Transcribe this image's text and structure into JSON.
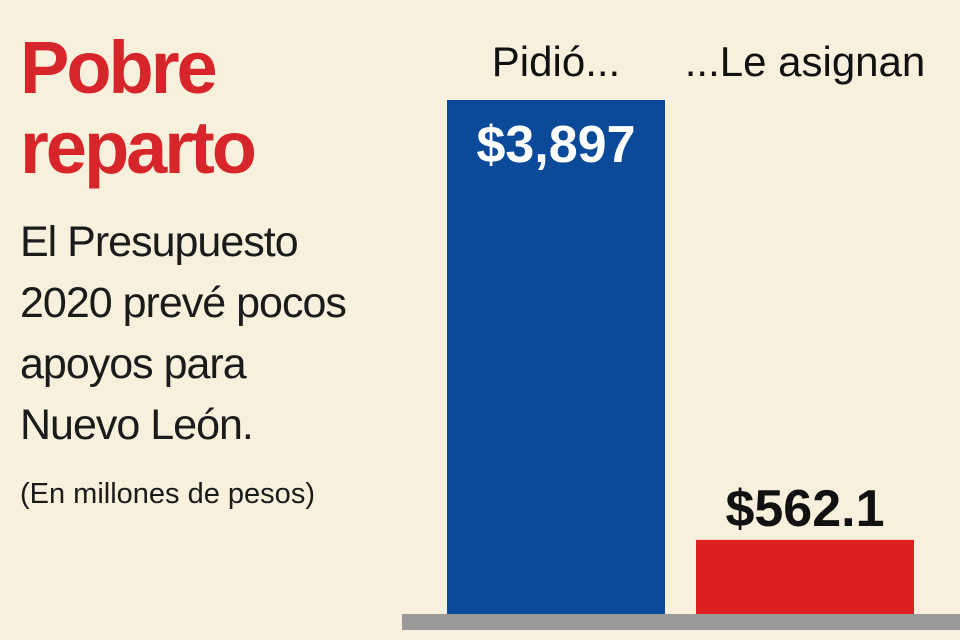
{
  "title_lines": [
    "Pobre",
    "reparto"
  ],
  "subtitle_lines": [
    "El Presupuesto",
    "2020 prevé pocos",
    "apoyos para",
    "Nuevo León."
  ],
  "units": "(En millones de pesos)",
  "colors": {
    "background": "#f7f0dc",
    "title": "#d7262b",
    "bar_requested": "#0b4a98",
    "bar_assigned": "#dd1f1f",
    "base": "#9a9a9a"
  },
  "chart_data": {
    "type": "bar",
    "categories": [
      "Pidió...",
      "...Le asignan"
    ],
    "values": [
      3897,
      562.1
    ],
    "value_labels": [
      "$3,897",
      "$562.1"
    ],
    "title": "Pobre reparto",
    "xlabel": "",
    "ylabel": "",
    "ylim": [
      0,
      3897
    ],
    "grid": false,
    "legend": "none"
  }
}
